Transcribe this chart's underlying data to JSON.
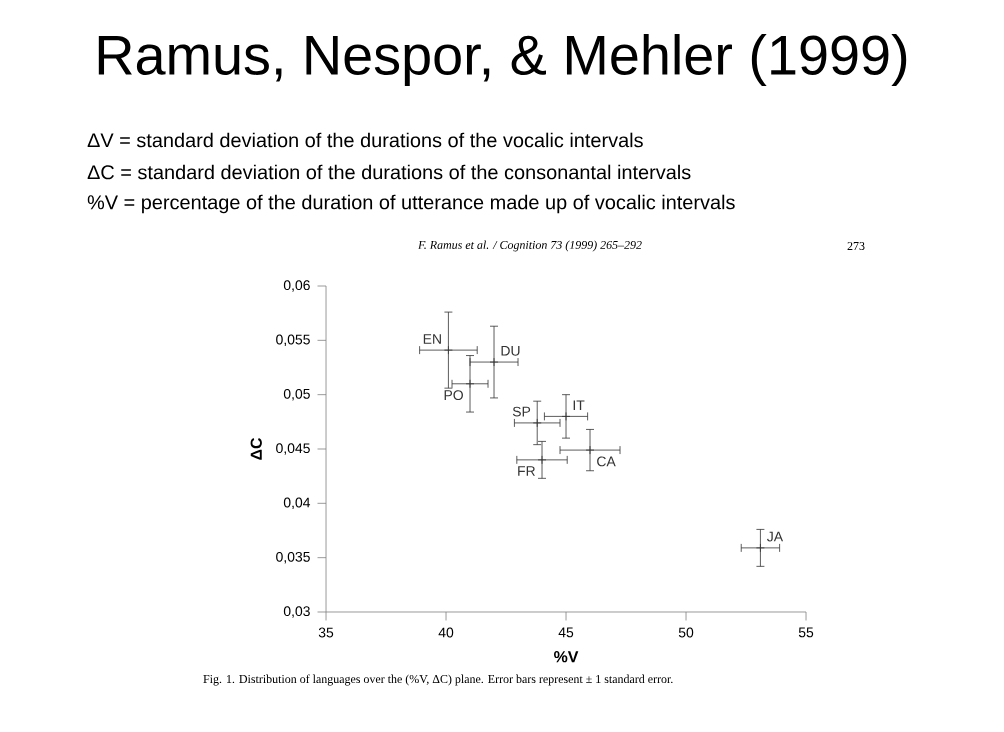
{
  "chart_data": {
    "type": "scatter",
    "title": "Ramus, Nespor, & Mehler (1999)",
    "subtitle": "F. Ramus et al. / Cognition 73 (1999) 265–292",
    "xlabel": "%V",
    "ylabel": "ΔC",
    "x": [
      40.1,
      42.0,
      41.0,
      43.8,
      45.0,
      44.0,
      46.0,
      53.1
    ],
    "values": [
      0.0541,
      0.053,
      0.051,
      0.0474,
      0.048,
      0.044,
      0.0449,
      0.0359
    ],
    "xerrors": [
      1.2,
      1.0,
      0.75,
      0.95,
      0.9,
      1.05,
      1.25,
      0.8
    ],
    "errors": [
      0.0035,
      0.0033,
      0.0026,
      0.002,
      0.002,
      0.0017,
      0.0019,
      0.0017
    ],
    "color": "#333333",
    "marker": "cross",
    "xlim": [
      35,
      55
    ],
    "xticks": [
      35,
      40,
      45,
      50,
      55
    ],
    "ylim": [
      0.03,
      0.06
    ],
    "yticks": [
      {
        "value": 0.03,
        "label": "0,03"
      },
      {
        "value": 0.035,
        "label": "0,035"
      },
      {
        "value": 0.04,
        "label": "0,04"
      },
      {
        "value": 0.045,
        "label": "0,045"
      },
      {
        "value": 0.05,
        "label": "0,05"
      },
      {
        "value": 0.055,
        "label": "0,055"
      },
      {
        "value": 0.06,
        "label": "0,06"
      }
    ],
    "annotations": [
      {
        "text": "EN",
        "x": 40.1,
        "y": 0.0541
      },
      {
        "text": "DU",
        "x": 42.0,
        "y": 0.053
      },
      {
        "text": "PO",
        "x": 41.0,
        "y": 0.051
      },
      {
        "text": "SP",
        "x": 43.8,
        "y": 0.0474
      },
      {
        "text": "IT",
        "x": 45.0,
        "y": 0.048
      },
      {
        "text": "FR",
        "x": 44.0,
        "y": 0.044
      },
      {
        "text": "CA",
        "x": 46.0,
        "y": 0.0449
      },
      {
        "text": "JA",
        "x": 53.1,
        "y": 0.0359
      },
      "ΔV = standard deviation of the durations of the vocalic intervals",
      "ΔC = standard deviation of the durations of the consonantal intervals",
      "%V = percentage of the duration of utterance made up of vocalic intervals",
      "273",
      "Fig. 1.  Distribution of languages over the (%V, ΔC) plane. Error bars represent  ± 1 standard error."
    ]
  }
}
